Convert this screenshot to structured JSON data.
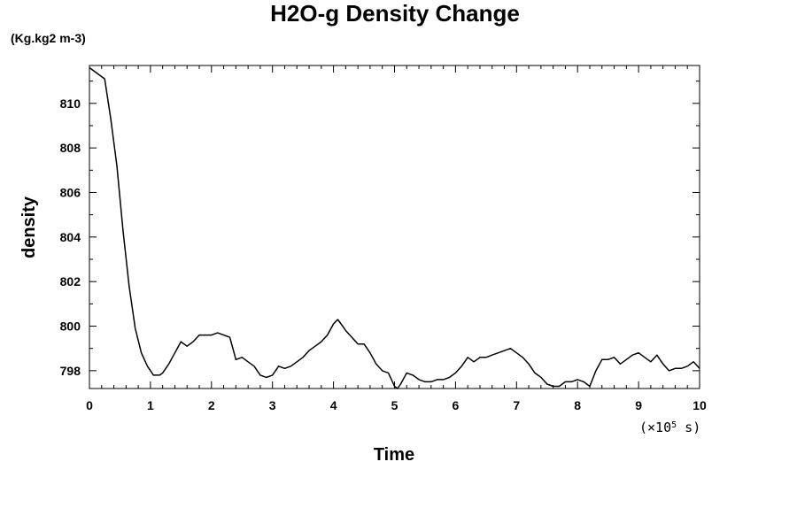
{
  "chart_data": {
    "type": "line",
    "title": "H2O-g Density Change",
    "unit_label": "(Kg.kg2 m-3)",
    "xlabel": "Time",
    "ylabel": "density",
    "x_scale_note": "(×10",
    "x_scale_exp": "5",
    "x_scale_unit": " s)",
    "xlim": [
      0,
      10
    ],
    "ylim": [
      797.2,
      811.7
    ],
    "x_ticks": [
      0,
      1,
      2,
      3,
      4,
      5,
      6,
      7,
      8,
      9,
      10
    ],
    "x_tick_labels": [
      "0",
      "1",
      "2",
      "3",
      "4",
      "5",
      "6",
      "7",
      "8",
      "9",
      "10"
    ],
    "y_ticks": [
      798,
      800,
      802,
      804,
      806,
      808,
      810
    ],
    "y_tick_labels": [
      "798",
      "800",
      "802",
      "804",
      "806",
      "808",
      "810"
    ],
    "grid": false,
    "line_color": "#000000",
    "series": [
      {
        "x": [
          0,
          0.25,
          0.35,
          0.45,
          0.55,
          0.65,
          0.75,
          0.85,
          0.95,
          1.05,
          1.15,
          1.2,
          1.3,
          1.4,
          1.5,
          1.6,
          1.7,
          1.8,
          1.9,
          2.0,
          2.1,
          2.2,
          2.3,
          2.4,
          2.5,
          2.6,
          2.7,
          2.8,
          2.9,
          3.0,
          3.1,
          3.2,
          3.3,
          3.4,
          3.5,
          3.6,
          3.7,
          3.8,
          3.9,
          4.0,
          4.07,
          4.15,
          4.2,
          4.3,
          4.4,
          4.5,
          4.6,
          4.7,
          4.8,
          4.9,
          5.0,
          5.05,
          5.1,
          5.2,
          5.3,
          5.4,
          5.5,
          5.6,
          5.7,
          5.8,
          5.9,
          6.0,
          6.1,
          6.2,
          6.3,
          6.4,
          6.5,
          6.6,
          6.7,
          6.8,
          6.9,
          7.0,
          7.1,
          7.2,
          7.3,
          7.4,
          7.5,
          7.6,
          7.7,
          7.8,
          7.9,
          8.0,
          8.1,
          8.2,
          8.3,
          8.4,
          8.5,
          8.6,
          8.7,
          8.8,
          8.9,
          9.0,
          9.1,
          9.2,
          9.3,
          9.4,
          9.5,
          9.6,
          9.7,
          9.8,
          9.9,
          10.0
        ],
        "values": [
          811.6,
          811.1,
          809.3,
          807.2,
          804.3,
          801.8,
          799.9,
          798.8,
          798.2,
          797.8,
          797.8,
          797.9,
          798.3,
          798.8,
          799.3,
          799.1,
          799.3,
          799.6,
          799.6,
          799.6,
          799.7,
          799.6,
          799.5,
          798.5,
          798.6,
          798.4,
          798.2,
          797.8,
          797.7,
          797.8,
          798.2,
          798.1,
          798.2,
          798.4,
          798.6,
          798.9,
          799.1,
          799.3,
          799.6,
          800.1,
          800.3,
          800.0,
          799.8,
          799.5,
          799.2,
          799.2,
          798.8,
          798.3,
          798.0,
          797.9,
          797.3,
          797.2,
          797.4,
          797.9,
          797.8,
          797.6,
          797.5,
          797.5,
          797.6,
          797.6,
          797.7,
          797.9,
          798.2,
          798.6,
          798.4,
          798.6,
          798.6,
          798.7,
          798.8,
          798.9,
          799.0,
          798.8,
          798.6,
          798.3,
          797.9,
          797.7,
          797.4,
          797.3,
          797.3,
          797.5,
          797.5,
          797.6,
          797.5,
          797.3,
          798.0,
          798.5,
          798.5,
          798.6,
          798.3,
          798.5,
          798.7,
          798.8,
          798.6,
          798.4,
          798.7,
          798.3,
          798.0,
          798.1,
          798.1,
          798.2,
          798.4,
          798.1
        ]
      }
    ]
  }
}
